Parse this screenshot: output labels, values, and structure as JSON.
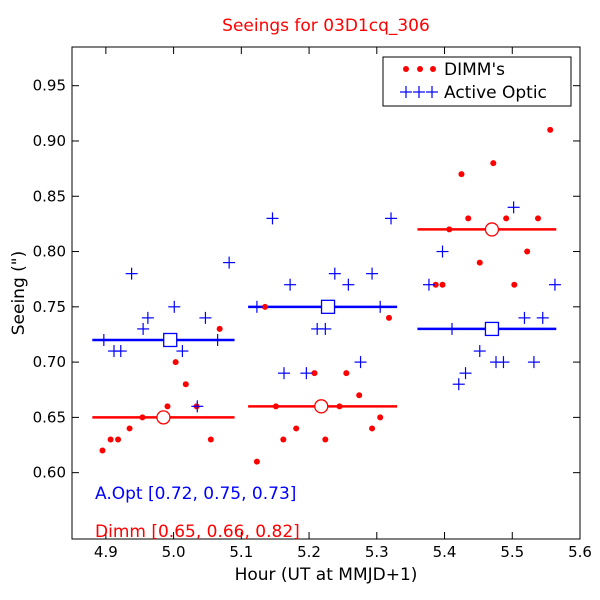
{
  "chart_data": {
    "type": "scatter",
    "title": "Seeings for 03D1cq_306",
    "xlabel": "Hour (UT at MMJD+1)",
    "ylabel": "Seeing (\")",
    "xlim": [
      4.85,
      5.6
    ],
    "ylim": [
      0.54,
      0.985
    ],
    "xticks": [
      4.9,
      5.0,
      5.1,
      5.2,
      5.3,
      5.4,
      5.5,
      5.6
    ],
    "xtick_labels": [
      "4.9",
      "5.0",
      "5.1",
      "5.2",
      "5.3",
      "5.4",
      "5.5",
      "5.6"
    ],
    "yticks": [
      0.6,
      0.65,
      0.7,
      0.75,
      0.8,
      0.85,
      0.9,
      0.95
    ],
    "ytick_labels": [
      "0.60",
      "0.65",
      "0.70",
      "0.75",
      "0.80",
      "0.85",
      "0.90",
      "0.95"
    ],
    "grid": false,
    "legend_position": "top-right",
    "series": [
      {
        "name": "DIMM's",
        "color": "#ff0000",
        "marker": "dot",
        "points": [
          [
            4.895,
            0.62
          ],
          [
            4.907,
            0.63
          ],
          [
            4.918,
            0.63
          ],
          [
            4.935,
            0.64
          ],
          [
            4.954,
            0.65
          ],
          [
            4.991,
            0.66
          ],
          [
            5.003,
            0.7
          ],
          [
            5.018,
            0.68
          ],
          [
            5.034,
            0.66
          ],
          [
            5.055,
            0.63
          ],
          [
            5.068,
            0.73
          ],
          [
            5.123,
            0.61
          ],
          [
            5.135,
            0.75
          ],
          [
            5.151,
            0.66
          ],
          [
            5.162,
            0.63
          ],
          [
            5.181,
            0.64
          ],
          [
            5.208,
            0.69
          ],
          [
            5.224,
            0.63
          ],
          [
            5.245,
            0.66
          ],
          [
            5.255,
            0.69
          ],
          [
            5.274,
            0.67
          ],
          [
            5.293,
            0.64
          ],
          [
            5.305,
            0.65
          ],
          [
            5.318,
            0.74
          ],
          [
            5.387,
            0.77
          ],
          [
            5.397,
            0.77
          ],
          [
            5.407,
            0.82
          ],
          [
            5.425,
            0.87
          ],
          [
            5.435,
            0.83
          ],
          [
            5.452,
            0.79
          ],
          [
            5.472,
            0.88
          ],
          [
            5.491,
            0.83
          ],
          [
            5.503,
            0.77
          ],
          [
            5.522,
            0.8
          ],
          [
            5.538,
            0.83
          ],
          [
            5.556,
            0.91
          ]
        ]
      },
      {
        "name": "Active Optic",
        "color": "#0000ff",
        "marker": "plus",
        "points": [
          [
            4.897,
            0.72
          ],
          [
            4.912,
            0.71
          ],
          [
            4.922,
            0.71
          ],
          [
            4.938,
            0.78
          ],
          [
            4.955,
            0.73
          ],
          [
            4.962,
            0.74
          ],
          [
            5.001,
            0.75
          ],
          [
            5.013,
            0.71
          ],
          [
            5.035,
            0.66
          ],
          [
            5.047,
            0.74
          ],
          [
            5.065,
            0.72
          ],
          [
            5.082,
            0.79
          ],
          [
            5.123,
            0.75
          ],
          [
            5.146,
            0.83
          ],
          [
            5.163,
            0.69
          ],
          [
            5.172,
            0.77
          ],
          [
            5.196,
            0.69
          ],
          [
            5.212,
            0.73
          ],
          [
            5.224,
            0.73
          ],
          [
            5.238,
            0.78
          ],
          [
            5.258,
            0.77
          ],
          [
            5.276,
            0.7
          ],
          [
            5.293,
            0.78
          ],
          [
            5.305,
            0.75
          ],
          [
            5.321,
            0.83
          ],
          [
            5.377,
            0.77
          ],
          [
            5.397,
            0.8
          ],
          [
            5.411,
            0.73
          ],
          [
            5.421,
            0.68
          ],
          [
            5.431,
            0.69
          ],
          [
            5.452,
            0.71
          ],
          [
            5.476,
            0.7
          ],
          [
            5.487,
            0.7
          ],
          [
            5.502,
            0.84
          ],
          [
            5.518,
            0.74
          ],
          [
            5.532,
            0.7
          ],
          [
            5.545,
            0.74
          ],
          [
            5.563,
            0.77
          ]
        ]
      }
    ],
    "averages": {
      "Active Optic": {
        "color": "#0000ff",
        "marker": "open-square",
        "segments": [
          {
            "x_start": 4.88,
            "x_end": 5.09,
            "center": 4.995,
            "value": 0.72
          },
          {
            "x_start": 5.11,
            "x_end": 5.33,
            "center": 5.228,
            "value": 0.75
          },
          {
            "x_start": 5.36,
            "x_end": 5.565,
            "center": 5.47,
            "value": 0.73
          }
        ]
      },
      "DIMM's": {
        "color": "#ff0000",
        "marker": "open-circle",
        "segments": [
          {
            "x_start": 4.88,
            "x_end": 5.09,
            "center": 4.985,
            "value": 0.65
          },
          {
            "x_start": 5.11,
            "x_end": 5.33,
            "center": 5.218,
            "value": 0.66
          },
          {
            "x_start": 5.36,
            "x_end": 5.565,
            "center": 5.47,
            "value": 0.82
          }
        ]
      }
    },
    "annotations": [
      {
        "text": "A.Opt [0.72, 0.75, 0.73]",
        "color": "#0000ff"
      },
      {
        "text": "Dimm [0.65, 0.66, 0.82]",
        "color": "#ff0000"
      }
    ]
  }
}
